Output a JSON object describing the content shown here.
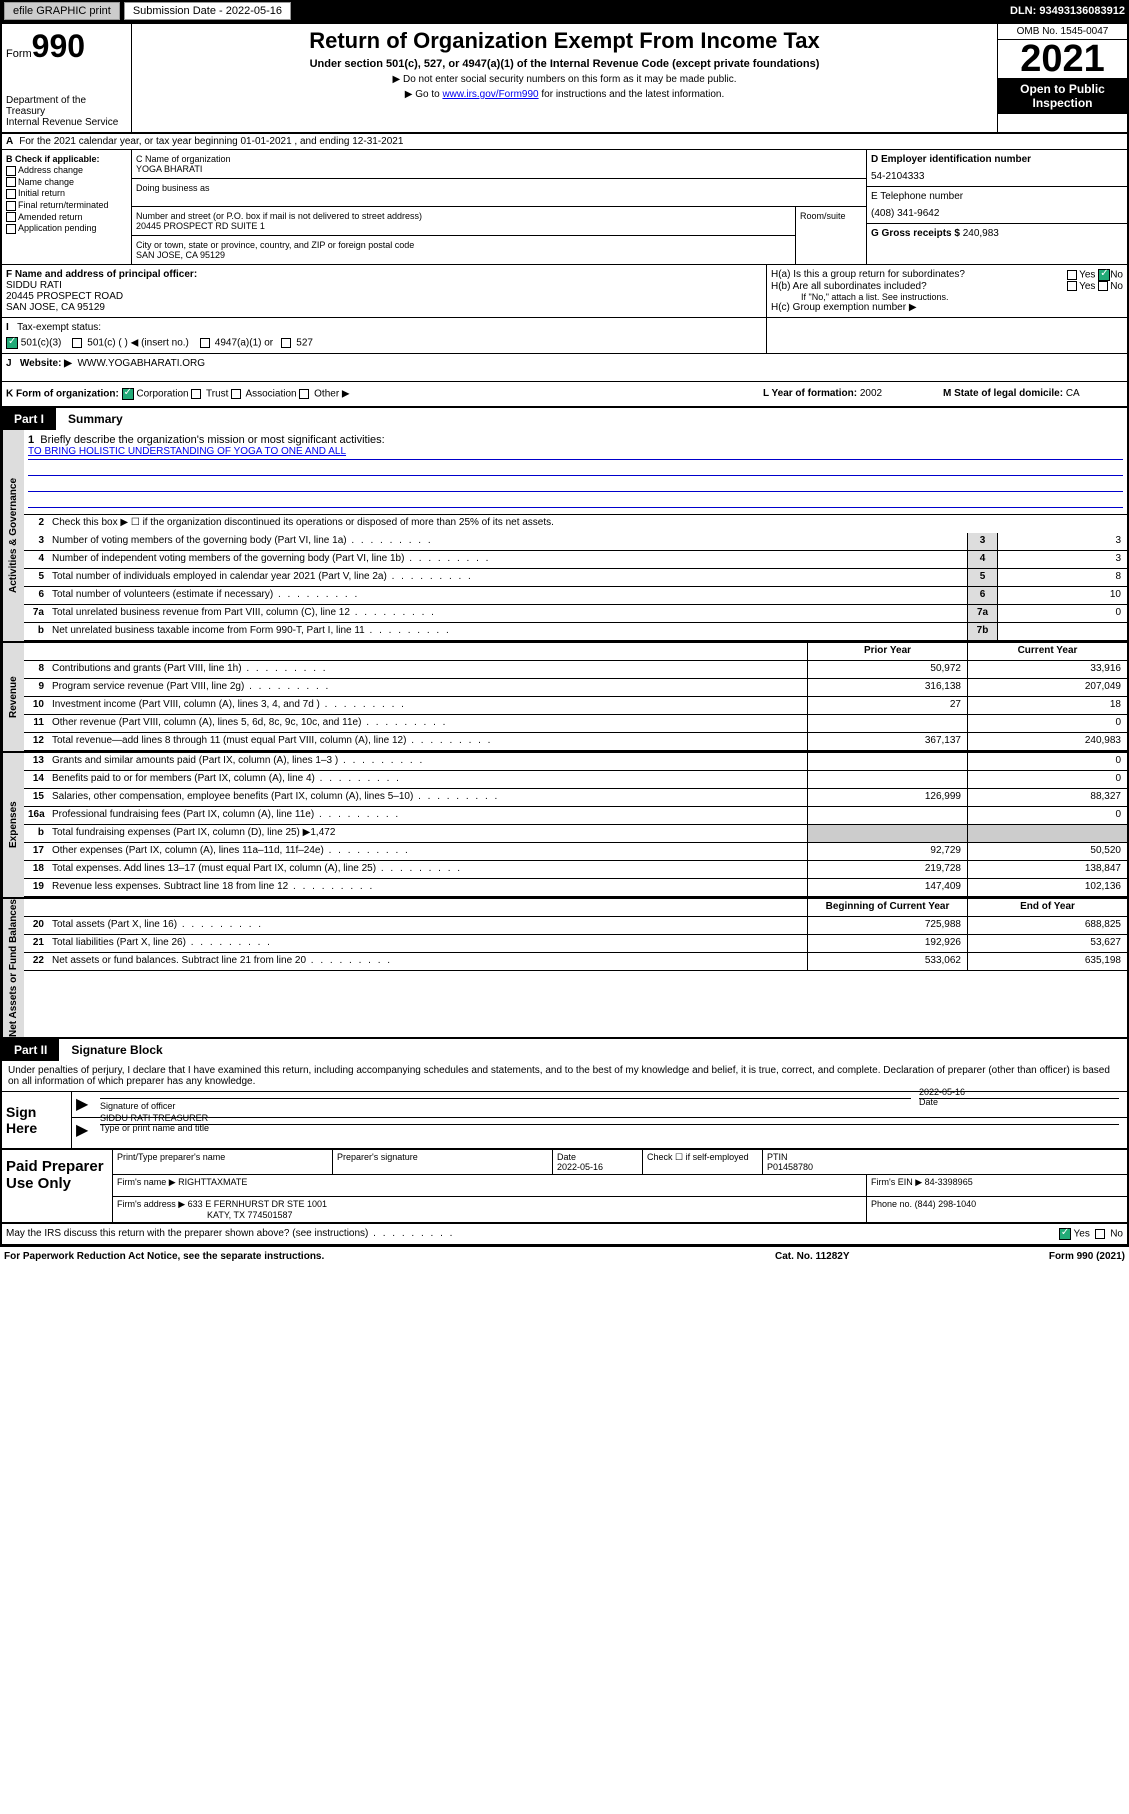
{
  "topBar": {
    "efile": "efile GRAPHIC print",
    "submissionLabel": "Submission Date - 2022-05-16",
    "dln": "DLN: 93493136083912"
  },
  "header": {
    "formWord": "Form",
    "formNum": "990",
    "dept": "Department of the Treasury",
    "irs": "Internal Revenue Service",
    "title": "Return of Organization Exempt From Income Tax",
    "subtitle": "Under section 501(c), 527, or 4947(a)(1) of the Internal Revenue Code (except private foundations)",
    "note1": "▶ Do not enter social security numbers on this form as it may be made public.",
    "note2_pre": "▶ Go to ",
    "note2_link": "www.irs.gov/Form990",
    "note2_post": " for instructions and the latest information.",
    "omb": "OMB No. 1545-0047",
    "year": "2021",
    "openPublic": "Open to Public Inspection"
  },
  "rowA": {
    "label": "A",
    "text": "For the 2021 calendar year, or tax year beginning 01-01-2021   , and ending 12-31-2021"
  },
  "sectionB": {
    "label": "B Check if applicable:",
    "opts": [
      "Address change",
      "Name change",
      "Initial return",
      "Final return/terminated",
      "Amended return",
      "Application pending"
    ]
  },
  "sectionC": {
    "nameLabel": "C Name of organization",
    "name": "YOGA BHARATI",
    "dbaLabel": "Doing business as",
    "streetLabel": "Number and street (or P.O. box if mail is not delivered to street address)",
    "street": "20445 PROSPECT RD SUITE 1",
    "roomLabel": "Room/suite",
    "cityLabel": "City or town, state or province, country, and ZIP or foreign postal code",
    "city": "SAN JOSE, CA  95129"
  },
  "sectionD": {
    "einLabel": "D Employer identification number",
    "ein": "54-2104333",
    "phoneLabel": "E Telephone number",
    "phone": "(408) 341-9642",
    "grossLabel": "G Gross receipts $",
    "gross": "240,983"
  },
  "sectionF": {
    "label": "F Name and address of principal officer:",
    "name": "SIDDU RATI",
    "addr1": "20445 PROSPECT ROAD",
    "addr2": "SAN JOSE, CA  95129"
  },
  "sectionH": {
    "ha": "H(a)  Is this a group return for subordinates?",
    "hb": "H(b)  Are all subordinates included?",
    "hbNote": "If \"No,\" attach a list. See instructions.",
    "hc": "H(c)  Group exemption number ▶",
    "yes": "Yes",
    "no": "No"
  },
  "rowI": {
    "label": "I",
    "text": "Tax-exempt status:",
    "opt1": "501(c)(3)",
    "opt2": "501(c) (  ) ◀ (insert no.)",
    "opt3": "4947(a)(1) or",
    "opt4": "527"
  },
  "rowJ": {
    "label": "J",
    "text": "Website: ▶",
    "value": "WWW.YOGABHARATI.ORG"
  },
  "rowK": {
    "label": "K Form of organization:",
    "opts": [
      "Corporation",
      "Trust",
      "Association",
      "Other ▶"
    ],
    "lLabel": "L Year of formation: ",
    "lVal": "2002",
    "mLabel": "M State of legal domicile: ",
    "mVal": "CA"
  },
  "part1": {
    "num": "Part I",
    "title": "Summary",
    "sideLabels": [
      "Activities & Governance",
      "Revenue",
      "Expenses",
      "Net Assets or Fund Balances"
    ],
    "line1": "Briefly describe the organization's mission or most significant activities:",
    "mission": "TO BRING HOLISTIC UNDERSTANDING OF YOGA TO ONE AND ALL",
    "line2": "Check this box ▶ ☐  if the organization discontinued its operations or disposed of more than 25% of its net assets.",
    "rows_gov": [
      {
        "n": "3",
        "t": "Number of voting members of the governing body (Part VI, line 1a)",
        "box": "3",
        "v": "3"
      },
      {
        "n": "4",
        "t": "Number of independent voting members of the governing body (Part VI, line 1b)",
        "box": "4",
        "v": "3"
      },
      {
        "n": "5",
        "t": "Total number of individuals employed in calendar year 2021 (Part V, line 2a)",
        "box": "5",
        "v": "8"
      },
      {
        "n": "6",
        "t": "Total number of volunteers (estimate if necessary)",
        "box": "6",
        "v": "10"
      },
      {
        "n": "7a",
        "t": "Total unrelated business revenue from Part VIII, column (C), line 12",
        "box": "7a",
        "v": "0"
      },
      {
        "n": "b",
        "t": "Net unrelated business taxable income from Form 990-T, Part I, line 11",
        "box": "7b",
        "v": ""
      }
    ],
    "priorHdr": "Prior Year",
    "currHdr": "Current Year",
    "rows_rev": [
      {
        "n": "8",
        "t": "Contributions and grants (Part VIII, line 1h)",
        "p": "50,972",
        "c": "33,916"
      },
      {
        "n": "9",
        "t": "Program service revenue (Part VIII, line 2g)",
        "p": "316,138",
        "c": "207,049"
      },
      {
        "n": "10",
        "t": "Investment income (Part VIII, column (A), lines 3, 4, and 7d )",
        "p": "27",
        "c": "18"
      },
      {
        "n": "11",
        "t": "Other revenue (Part VIII, column (A), lines 5, 6d, 8c, 9c, 10c, and 11e)",
        "p": "",
        "c": "0"
      },
      {
        "n": "12",
        "t": "Total revenue—add lines 8 through 11 (must equal Part VIII, column (A), line 12)",
        "p": "367,137",
        "c": "240,983"
      }
    ],
    "rows_exp": [
      {
        "n": "13",
        "t": "Grants and similar amounts paid (Part IX, column (A), lines 1–3 )",
        "p": "",
        "c": "0"
      },
      {
        "n": "14",
        "t": "Benefits paid to or for members (Part IX, column (A), line 4)",
        "p": "",
        "c": "0"
      },
      {
        "n": "15",
        "t": "Salaries, other compensation, employee benefits (Part IX, column (A), lines 5–10)",
        "p": "126,999",
        "c": "88,327"
      },
      {
        "n": "16a",
        "t": "Professional fundraising fees (Part IX, column (A), line 11e)",
        "p": "",
        "c": "0"
      },
      {
        "n": "b",
        "t": "Total fundraising expenses (Part IX, column (D), line 25) ▶1,472",
        "p": null,
        "c": null
      },
      {
        "n": "17",
        "t": "Other expenses (Part IX, column (A), lines 11a–11d, 11f–24e)",
        "p": "92,729",
        "c": "50,520"
      },
      {
        "n": "18",
        "t": "Total expenses. Add lines 13–17 (must equal Part IX, column (A), line 25)",
        "p": "219,728",
        "c": "138,847"
      },
      {
        "n": "19",
        "t": "Revenue less expenses. Subtract line 18 from line 12",
        "p": "147,409",
        "c": "102,136"
      }
    ],
    "begHdr": "Beginning of Current Year",
    "endHdr": "End of Year",
    "rows_net": [
      {
        "n": "20",
        "t": "Total assets (Part X, line 16)",
        "p": "725,988",
        "c": "688,825"
      },
      {
        "n": "21",
        "t": "Total liabilities (Part X, line 26)",
        "p": "192,926",
        "c": "53,627"
      },
      {
        "n": "22",
        "t": "Net assets or fund balances. Subtract line 21 from line 20",
        "p": "533,062",
        "c": "635,198"
      }
    ]
  },
  "part2": {
    "num": "Part II",
    "title": "Signature Block",
    "decl": "Under penalties of perjury, I declare that I have examined this return, including accompanying schedules and statements, and to the best of my knowledge and belief, it is true, correct, and complete. Declaration of preparer (other than officer) is based on all information of which preparer has any knowledge."
  },
  "sign": {
    "label": "Sign Here",
    "sigLabel": "Signature of officer",
    "dateLabel": "Date",
    "date": "2022-05-16",
    "nameTitle": "SIDDU RATI TREASURER",
    "nameTitleLabel": "Type or print name and title"
  },
  "paid": {
    "label": "Paid Preparer Use Only",
    "h1": "Print/Type preparer's name",
    "h2": "Preparer's signature",
    "h3": "Date",
    "h3v": "2022-05-16",
    "h4": "Check ☐ if self-employed",
    "h5": "PTIN",
    "h5v": "P01458780",
    "firmNameLabel": "Firm's name    ▶",
    "firmName": "RIGHTTAXMATE",
    "firmEinLabel": "Firm's EIN ▶",
    "firmEin": "84-3398965",
    "firmAddrLabel": "Firm's address ▶",
    "firmAddr1": "633 E FERNHURST DR STE 1001",
    "firmAddr2": "KATY, TX  774501587",
    "phoneLabel": "Phone no.",
    "phone": "(844) 298-1040"
  },
  "footer": {
    "discuss": "May the IRS discuss this return with the preparer shown above? (see instructions)",
    "yes": "Yes",
    "no": "No",
    "paperwork": "For Paperwork Reduction Act Notice, see the separate instructions.",
    "catNo": "Cat. No. 11282Y",
    "formRef": "Form 990 (2021)"
  }
}
